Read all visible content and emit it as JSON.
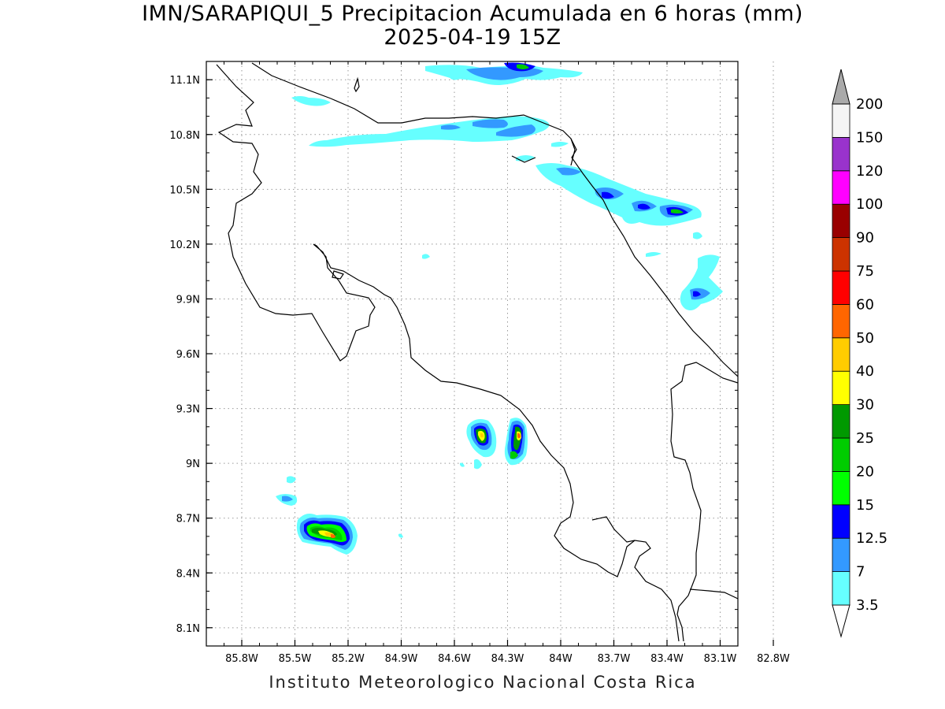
{
  "title": {
    "line1": "IMN/SARAPIQUI_5 Precipitacion Acumulada en 6 horas (mm)",
    "line2": "2025-04-19 15Z"
  },
  "footer": "Instituto Meteorologico Nacional Costa Rica",
  "map": {
    "lon_range": [
      -86.0,
      -83.0
    ],
    "lat_range": [
      8.0,
      11.2
    ],
    "x_ticks": [
      {
        "value": -85.8,
        "label": "85.8W"
      },
      {
        "value": -85.5,
        "label": "85.5W"
      },
      {
        "value": -85.2,
        "label": "85.2W"
      },
      {
        "value": -84.9,
        "label": "84.9W"
      },
      {
        "value": -84.6,
        "label": "84.6W"
      },
      {
        "value": -84.3,
        "label": "84.3W"
      },
      {
        "value": -84.0,
        "label": "84W"
      },
      {
        "value": -83.7,
        "label": "83.7W"
      },
      {
        "value": -83.4,
        "label": "83.4W"
      },
      {
        "value": -83.1,
        "label": "83.1W"
      },
      {
        "value": -82.8,
        "label": "82.8W"
      }
    ],
    "y_ticks": [
      {
        "value": 8.1,
        "label": "8.1N"
      },
      {
        "value": 8.4,
        "label": "8.4N"
      },
      {
        "value": 8.7,
        "label": "8.7N"
      },
      {
        "value": 9.0,
        "label": "9N"
      },
      {
        "value": 9.3,
        "label": "9.3N"
      },
      {
        "value": 9.6,
        "label": "9.6N"
      },
      {
        "value": 9.9,
        "label": "9.9N"
      },
      {
        "value": 10.2,
        "label": "10.2N"
      },
      {
        "value": 10.5,
        "label": "10.5N"
      },
      {
        "value": 10.8,
        "label": "10.8N"
      },
      {
        "value": 11.1,
        "label": "11.1N"
      }
    ],
    "grid": "dotted"
  },
  "colorbar": {
    "levels": [
      {
        "label": "3.5",
        "color": "#66ffff"
      },
      {
        "label": "7",
        "color": "#3399ff"
      },
      {
        "label": "12.5",
        "color": "#0000ff"
      },
      {
        "label": "15",
        "color": "#00ff00"
      },
      {
        "label": "20",
        "color": "#00cc00"
      },
      {
        "label": "25",
        "color": "#009900"
      },
      {
        "label": "30",
        "color": "#ffff00"
      },
      {
        "label": "40",
        "color": "#ffcc00"
      },
      {
        "label": "50",
        "color": "#ff6600"
      },
      {
        "label": "60",
        "color": "#ff0000"
      },
      {
        "label": "75",
        "color": "#cc3300"
      },
      {
        "label": "90",
        "color": "#990000"
      },
      {
        "label": "100",
        "color": "#ff00ff"
      },
      {
        "label": "120",
        "color": "#9933cc"
      },
      {
        "label": "150",
        "color": "#f5f5f5"
      },
      {
        "label": "200",
        "color": "#aaaaaa"
      }
    ],
    "bottom_arrow_color": "#ffffff",
    "top_arrow_color": "#aaaaaa"
  }
}
